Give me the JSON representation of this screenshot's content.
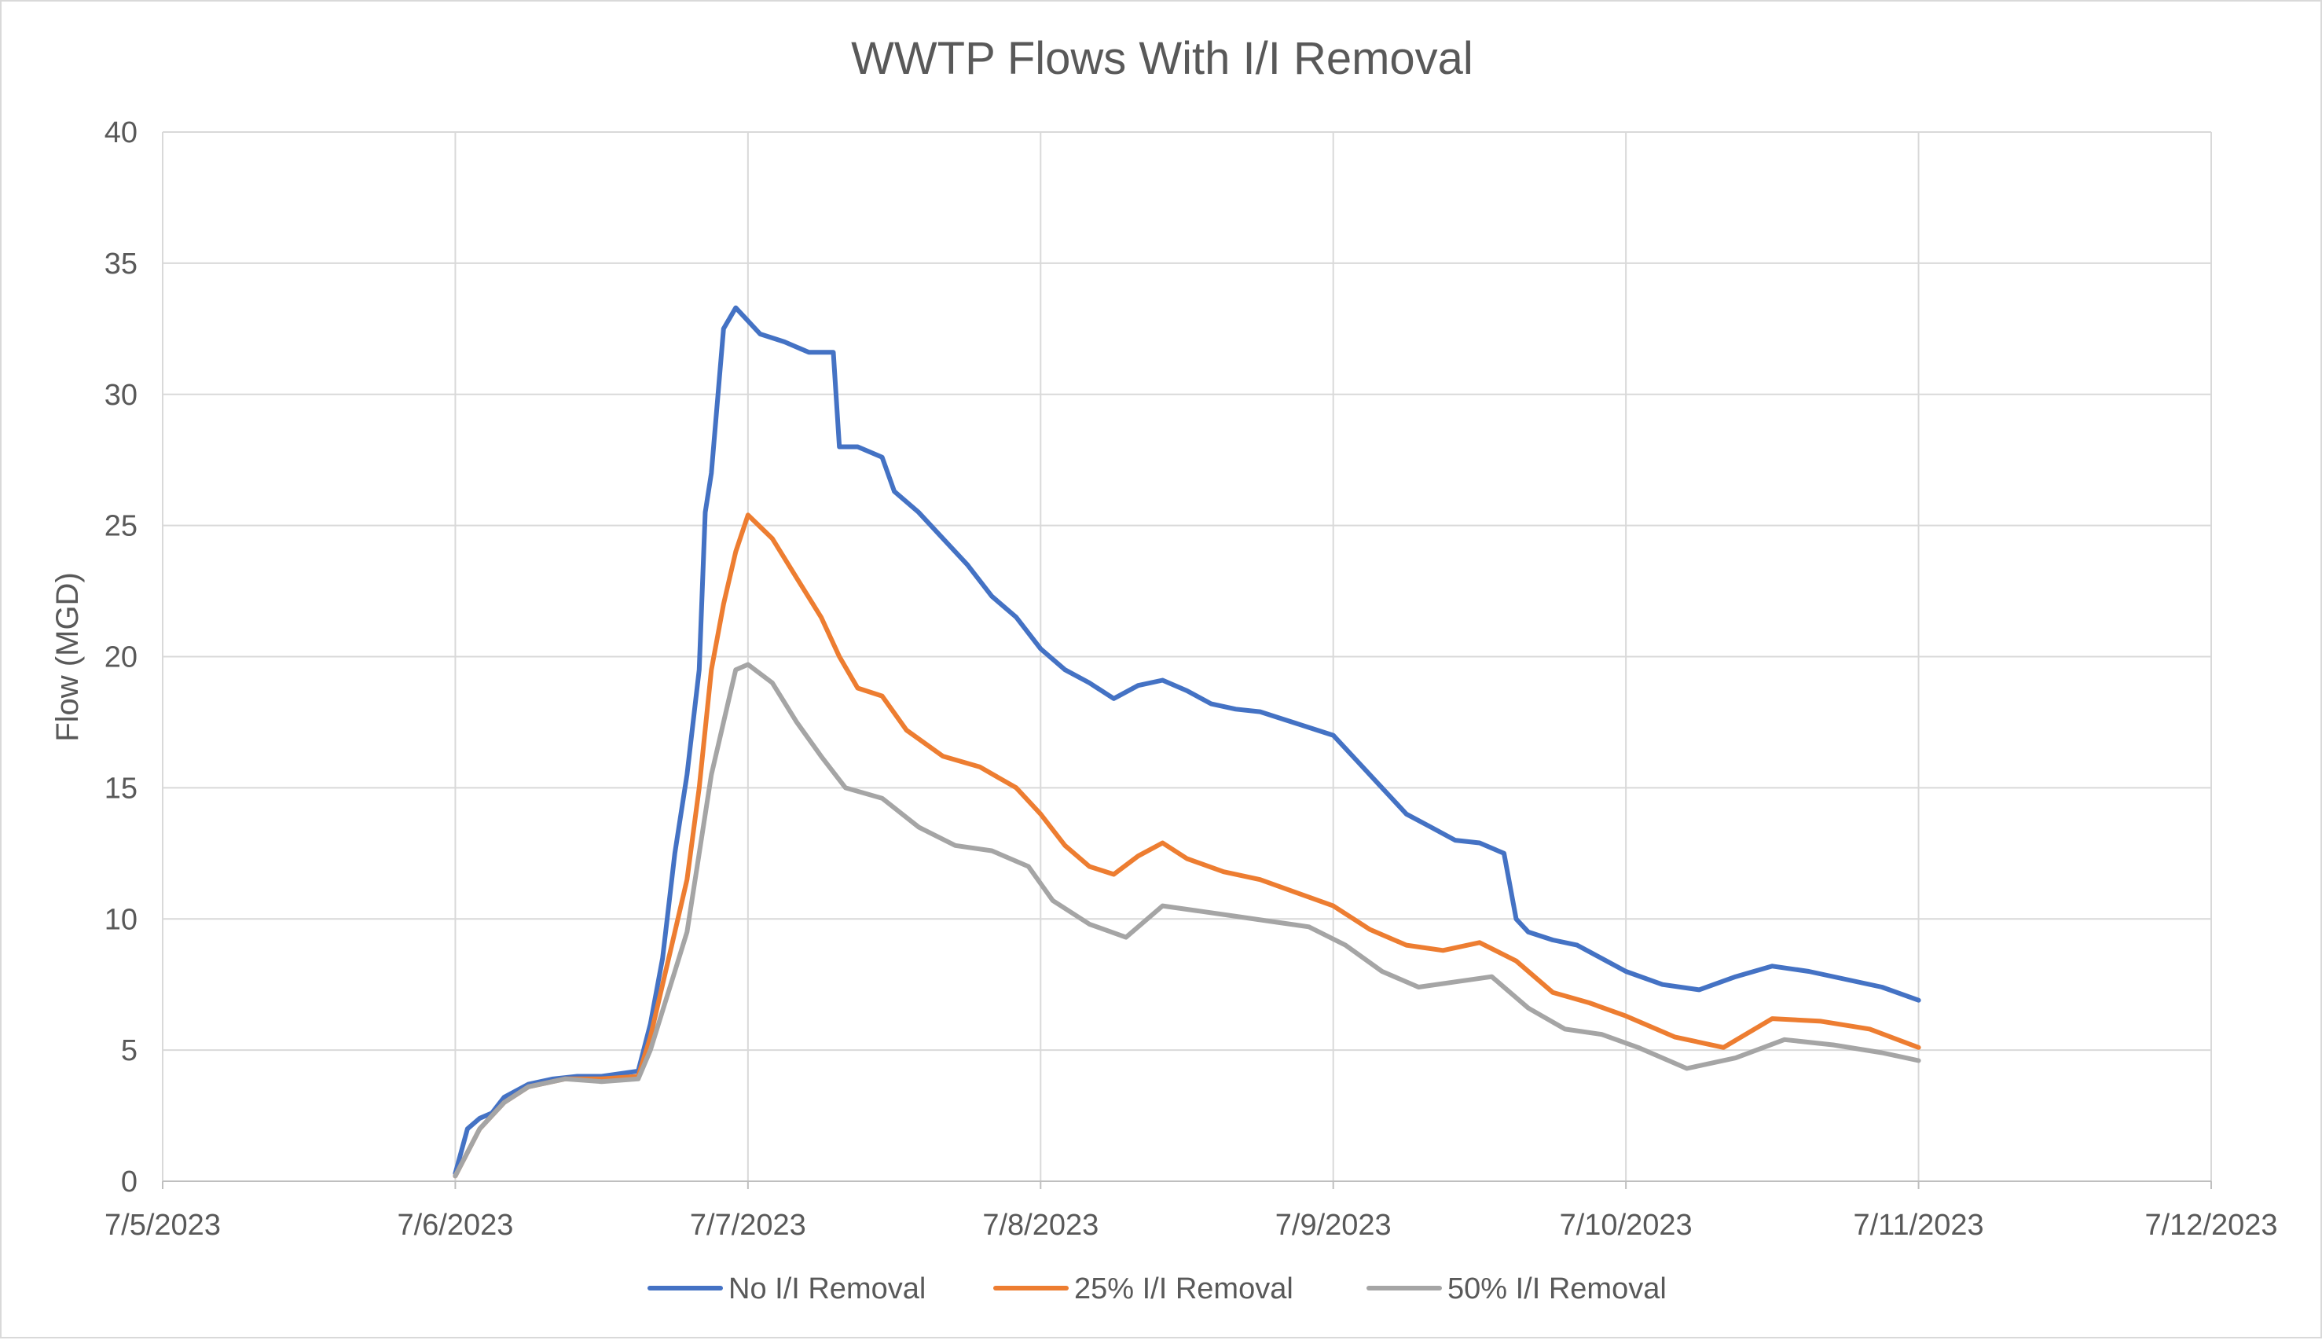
{
  "chart_data": {
    "type": "line",
    "title": "WWTP Flows With I/I Removal",
    "xlabel": "",
    "ylabel": "Flow (MGD)",
    "x_ticks": [
      "7/5/2023",
      "7/6/2023",
      "7/7/2023",
      "7/8/2023",
      "7/9/2023",
      "7/10/2023",
      "7/11/2023",
      "7/12/2023"
    ],
    "xlim": [
      "7/5/2023",
      "7/12/2023"
    ],
    "ylim": [
      0,
      40
    ],
    "y_ticks": [
      "0",
      "5",
      "10",
      "15",
      "20",
      "25",
      "30",
      "35",
      "40"
    ],
    "grid": "on",
    "legend": "bottom",
    "series": [
      {
        "name": "No I/I Removal",
        "color": "#4472c4",
        "points": [
          [
            "7/6/2023 00:00",
            0.3
          ],
          [
            "7/6/2023 01:00",
            2.0
          ],
          [
            "7/6/2023 02:00",
            2.4
          ],
          [
            "7/6/2023 03:00",
            2.6
          ],
          [
            "7/6/2023 04:00",
            3.2
          ],
          [
            "7/6/2023 06:00",
            3.7
          ],
          [
            "7/6/2023 08:00",
            3.9
          ],
          [
            "7/6/2023 10:00",
            4.0
          ],
          [
            "7/6/2023 12:00",
            4.0
          ],
          [
            "7/6/2023 15:00",
            4.2
          ],
          [
            "7/6/2023 16:00",
            6.0
          ],
          [
            "7/6/2023 17:00",
            8.5
          ],
          [
            "7/6/2023 18:00",
            12.5
          ],
          [
            "7/6/2023 19:00",
            15.5
          ],
          [
            "7/6/2023 20:00",
            19.5
          ],
          [
            "7/6/2023 20:30",
            25.5
          ],
          [
            "7/6/2023 21:00",
            27.0
          ],
          [
            "7/6/2023 22:00",
            32.5
          ],
          [
            "7/6/2023 23:00",
            33.3
          ],
          [
            "7/7/2023 00:00",
            32.8
          ],
          [
            "7/7/2023 01:00",
            32.3
          ],
          [
            "7/7/2023 03:00",
            32.0
          ],
          [
            "7/7/2023 05:00",
            31.6
          ],
          [
            "7/7/2023 07:00",
            31.6
          ],
          [
            "7/7/2023 07:30",
            28.0
          ],
          [
            "7/7/2023 09:00",
            28.0
          ],
          [
            "7/7/2023 11:00",
            27.6
          ],
          [
            "7/7/2023 12:00",
            26.3
          ],
          [
            "7/7/2023 14:00",
            25.5
          ],
          [
            "7/7/2023 16:00",
            24.5
          ],
          [
            "7/7/2023 18:00",
            23.5
          ],
          [
            "7/7/2023 20:00",
            22.3
          ],
          [
            "7/7/2023 22:00",
            21.5
          ],
          [
            "7/8/2023 00:00",
            20.3
          ],
          [
            "7/8/2023 02:00",
            19.5
          ],
          [
            "7/8/2023 04:00",
            19.0
          ],
          [
            "7/8/2023 06:00",
            18.4
          ],
          [
            "7/8/2023 08:00",
            18.9
          ],
          [
            "7/8/2023 10:00",
            19.1
          ],
          [
            "7/8/2023 12:00",
            18.7
          ],
          [
            "7/8/2023 14:00",
            18.2
          ],
          [
            "7/8/2023 16:00",
            18.0
          ],
          [
            "7/8/2023 18:00",
            17.9
          ],
          [
            "7/8/2023 20:00",
            17.6
          ],
          [
            "7/8/2023 22:00",
            17.3
          ],
          [
            "7/9/2023 00:00",
            17.0
          ],
          [
            "7/9/2023 02:00",
            16.0
          ],
          [
            "7/9/2023 04:00",
            15.0
          ],
          [
            "7/9/2023 06:00",
            14.0
          ],
          [
            "7/9/2023 08:00",
            13.5
          ],
          [
            "7/9/2023 10:00",
            13.0
          ],
          [
            "7/9/2023 12:00",
            12.9
          ],
          [
            "7/9/2023 14:00",
            12.5
          ],
          [
            "7/9/2023 15:00",
            10.0
          ],
          [
            "7/9/2023 16:00",
            9.5
          ],
          [
            "7/9/2023 18:00",
            9.2
          ],
          [
            "7/9/2023 20:00",
            9.0
          ],
          [
            "7/9/2023 22:00",
            8.5
          ],
          [
            "7/10/2023 00:00",
            8.0
          ],
          [
            "7/10/2023 03:00",
            7.5
          ],
          [
            "7/10/2023 06:00",
            7.3
          ],
          [
            "7/10/2023 09:00",
            7.8
          ],
          [
            "7/10/2023 12:00",
            8.2
          ],
          [
            "7/10/2023 15:00",
            8.0
          ],
          [
            "7/10/2023 18:00",
            7.7
          ],
          [
            "7/10/2023 21:00",
            7.4
          ],
          [
            "7/11/2023 00:00",
            6.9
          ]
        ]
      },
      {
        "name": "25% I/I Removal",
        "color": "#ed7d31",
        "points": [
          [
            "7/6/2023 00:00",
            0.2
          ],
          [
            "7/6/2023 02:00",
            2.0
          ],
          [
            "7/6/2023 04:00",
            3.0
          ],
          [
            "7/6/2023 06:00",
            3.6
          ],
          [
            "7/6/2023 09:00",
            3.9
          ],
          [
            "7/6/2023 12:00",
            3.9
          ],
          [
            "7/6/2023 15:00",
            4.0
          ],
          [
            "7/6/2023 16:00",
            5.5
          ],
          [
            "7/6/2023 17:00",
            7.5
          ],
          [
            "7/6/2023 18:00",
            9.5
          ],
          [
            "7/6/2023 19:00",
            11.5
          ],
          [
            "7/6/2023 20:00",
            15.0
          ],
          [
            "7/6/2023 21:00",
            19.5
          ],
          [
            "7/6/2023 22:00",
            22.0
          ],
          [
            "7/6/2023 23:00",
            24.0
          ],
          [
            "7/7/2023 00:00",
            25.4
          ],
          [
            "7/7/2023 02:00",
            24.5
          ],
          [
            "7/7/2023 04:00",
            23.0
          ],
          [
            "7/7/2023 06:00",
            21.5
          ],
          [
            "7/7/2023 07:30",
            20.0
          ],
          [
            "7/7/2023 09:00",
            18.8
          ],
          [
            "7/7/2023 11:00",
            18.5
          ],
          [
            "7/7/2023 13:00",
            17.2
          ],
          [
            "7/7/2023 16:00",
            16.2
          ],
          [
            "7/7/2023 19:00",
            15.8
          ],
          [
            "7/7/2023 22:00",
            15.0
          ],
          [
            "7/8/2023 00:00",
            14.0
          ],
          [
            "7/8/2023 02:00",
            12.8
          ],
          [
            "7/8/2023 04:00",
            12.0
          ],
          [
            "7/8/2023 06:00",
            11.7
          ],
          [
            "7/8/2023 08:00",
            12.4
          ],
          [
            "7/8/2023 10:00",
            12.9
          ],
          [
            "7/8/2023 12:00",
            12.3
          ],
          [
            "7/8/2023 15:00",
            11.8
          ],
          [
            "7/8/2023 18:00",
            11.5
          ],
          [
            "7/8/2023 21:00",
            11.0
          ],
          [
            "7/9/2023 00:00",
            10.5
          ],
          [
            "7/9/2023 03:00",
            9.6
          ],
          [
            "7/9/2023 06:00",
            9.0
          ],
          [
            "7/9/2023 09:00",
            8.8
          ],
          [
            "7/9/2023 12:00",
            9.1
          ],
          [
            "7/9/2023 15:00",
            8.4
          ],
          [
            "7/9/2023 18:00",
            7.2
          ],
          [
            "7/9/2023 21:00",
            6.8
          ],
          [
            "7/10/2023 00:00",
            6.3
          ],
          [
            "7/10/2023 04:00",
            5.5
          ],
          [
            "7/10/2023 08:00",
            5.1
          ],
          [
            "7/10/2023 12:00",
            6.2
          ],
          [
            "7/10/2023 16:00",
            6.1
          ],
          [
            "7/10/2023 20:00",
            5.8
          ],
          [
            "7/11/2023 00:00",
            5.1
          ]
        ]
      },
      {
        "name": "50% I/I Removal",
        "color": "#a5a5a5",
        "points": [
          [
            "7/6/2023 00:00",
            0.2
          ],
          [
            "7/6/2023 02:00",
            2.0
          ],
          [
            "7/6/2023 04:00",
            3.0
          ],
          [
            "7/6/2023 06:00",
            3.6
          ],
          [
            "7/6/2023 09:00",
            3.9
          ],
          [
            "7/6/2023 12:00",
            3.8
          ],
          [
            "7/6/2023 15:00",
            3.9
          ],
          [
            "7/6/2023 16:00",
            5.0
          ],
          [
            "7/6/2023 17:00",
            6.5
          ],
          [
            "7/6/2023 18:00",
            8.0
          ],
          [
            "7/6/2023 19:00",
            9.5
          ],
          [
            "7/6/2023 20:00",
            12.5
          ],
          [
            "7/6/2023 21:00",
            15.5
          ],
          [
            "7/6/2023 22:00",
            17.5
          ],
          [
            "7/6/2023 23:00",
            19.5
          ],
          [
            "7/7/2023 00:00",
            19.7
          ],
          [
            "7/7/2023 02:00",
            19.0
          ],
          [
            "7/7/2023 04:00",
            17.5
          ],
          [
            "7/7/2023 06:00",
            16.2
          ],
          [
            "7/7/2023 08:00",
            15.0
          ],
          [
            "7/7/2023 11:00",
            14.6
          ],
          [
            "7/7/2023 14:00",
            13.5
          ],
          [
            "7/7/2023 17:00",
            12.8
          ],
          [
            "7/7/2023 20:00",
            12.6
          ],
          [
            "7/7/2023 23:00",
            12.0
          ],
          [
            "7/8/2023 01:00",
            10.7
          ],
          [
            "7/8/2023 04:00",
            9.8
          ],
          [
            "7/8/2023 07:00",
            9.3
          ],
          [
            "7/8/2023 10:00",
            10.5
          ],
          [
            "7/8/2023 13:00",
            10.3
          ],
          [
            "7/8/2023 16:00",
            10.1
          ],
          [
            "7/8/2023 19:00",
            9.9
          ],
          [
            "7/8/2023 22:00",
            9.7
          ],
          [
            "7/9/2023 01:00",
            9.0
          ],
          [
            "7/9/2023 04:00",
            8.0
          ],
          [
            "7/9/2023 07:00",
            7.4
          ],
          [
            "7/9/2023 10:00",
            7.6
          ],
          [
            "7/9/2023 13:00",
            7.8
          ],
          [
            "7/9/2023 16:00",
            6.6
          ],
          [
            "7/9/2023 19:00",
            5.8
          ],
          [
            "7/9/2023 22:00",
            5.6
          ],
          [
            "7/10/2023 01:00",
            5.1
          ],
          [
            "7/10/2023 05:00",
            4.3
          ],
          [
            "7/10/2023 09:00",
            4.7
          ],
          [
            "7/10/2023 13:00",
            5.4
          ],
          [
            "7/10/2023 17:00",
            5.2
          ],
          [
            "7/10/2023 21:00",
            4.9
          ],
          [
            "7/11/2023 00:00",
            4.6
          ]
        ]
      }
    ]
  }
}
